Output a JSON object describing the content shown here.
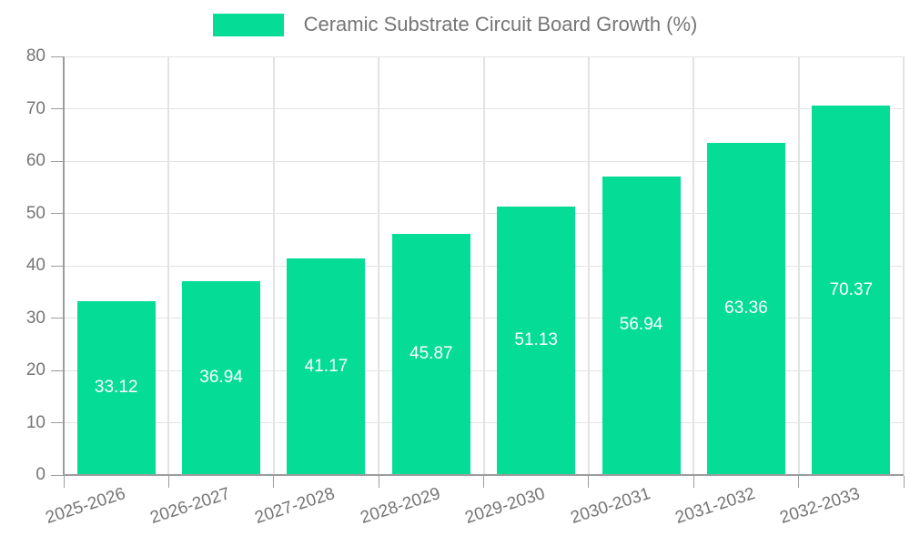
{
  "chart_data": {
    "type": "bar",
    "title": "Ceramic Substrate Circuit Board Growth (%)",
    "legend_entries": [
      "Ceramic Substrate Circuit Board Growth (%)"
    ],
    "legend_position": "top-center",
    "categories": [
      "2025-2026",
      "2026-2027",
      "2027-2028",
      "2028-2029",
      "2029-2030",
      "2030-2031",
      "2031-2032",
      "2032-2033"
    ],
    "values": [
      33.12,
      36.94,
      41.17,
      45.87,
      51.13,
      56.94,
      63.36,
      70.37
    ],
    "value_labels": [
      "33.12",
      "36.94",
      "41.17",
      "45.87",
      "51.13",
      "56.94",
      "63.36",
      "70.37"
    ],
    "y_ticks": [
      0,
      10,
      20,
      30,
      40,
      50,
      60,
      70,
      80
    ],
    "ylim": [
      0,
      80
    ],
    "xlabel": "",
    "ylabel": "",
    "grid": true,
    "colors": {
      "bar": "#05DC96",
      "bar_value_label": "#ffffff",
      "axis_text": "#757575",
      "legend_text": "#757575",
      "grid_line": "#e3e3e3",
      "axis_line": "#9c9c9c",
      "background": "#ffffff"
    }
  }
}
